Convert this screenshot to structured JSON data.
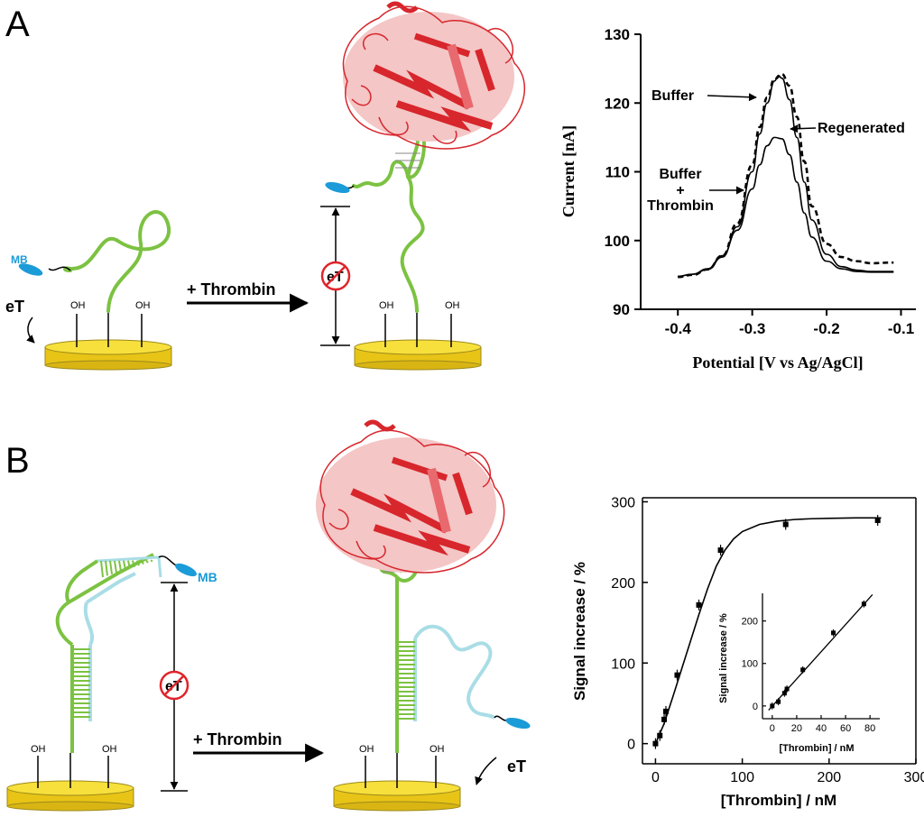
{
  "panels": {
    "a": {
      "letter": "A"
    },
    "b": {
      "letter": "B"
    }
  },
  "labels": {
    "mb": "MB",
    "et": "eT",
    "oh": "OH",
    "plus_thrombin": "+ Thrombin"
  },
  "colors": {
    "gold": "#f2d61f",
    "aptamer_green": "#7cc242",
    "complement_blue": "#a9dde6",
    "mb_blue": "#1b9bd7",
    "protein_red": "#d7262c",
    "block_red": "#e0242a"
  },
  "chart_data": [
    {
      "type": "line",
      "xlabel": "Potential [V vs Ag/AgCl]",
      "ylabel": "Current [nA]",
      "xlim": [
        -0.45,
        -0.08
      ],
      "ylim": [
        90,
        130
      ],
      "xticks": [
        "-0.4",
        "-0.3",
        "-0.2",
        "-0.1"
      ],
      "yticks": [
        "90",
        "100",
        "110",
        "120",
        "130"
      ],
      "grid": false,
      "series": [
        {
          "name": "Buffer",
          "style": "solid",
          "x": [
            -0.4,
            -0.38,
            -0.36,
            -0.34,
            -0.32,
            -0.3,
            -0.29,
            -0.28,
            -0.27,
            -0.265,
            -0.26,
            -0.25,
            -0.24,
            -0.23,
            -0.22,
            -0.2,
            -0.18,
            -0.16,
            -0.14,
            -0.11
          ],
          "y": [
            94.8,
            95.1,
            95.8,
            97.6,
            102.0,
            110.0,
            115.5,
            120.0,
            123.2,
            124.0,
            123.6,
            120.5,
            115.0,
            108.5,
            103.0,
            98.0,
            96.2,
            95.7,
            95.5,
            95.5
          ]
        },
        {
          "name": "Regenerated",
          "style": "dashed",
          "x": [
            -0.4,
            -0.38,
            -0.36,
            -0.34,
            -0.32,
            -0.3,
            -0.29,
            -0.28,
            -0.27,
            -0.26,
            -0.25,
            -0.24,
            -0.23,
            -0.22,
            -0.2,
            -0.18,
            -0.16,
            -0.14,
            -0.11
          ],
          "y": [
            94.7,
            95.0,
            95.8,
            97.8,
            102.5,
            111.0,
            116.5,
            120.8,
            123.5,
            124.2,
            122.5,
            118.0,
            111.5,
            105.0,
            99.5,
            97.6,
            97.0,
            96.7,
            96.8
          ]
        },
        {
          "name": "Buffer + Thrombin",
          "style": "solid",
          "x": [
            -0.4,
            -0.38,
            -0.36,
            -0.34,
            -0.32,
            -0.3,
            -0.29,
            -0.28,
            -0.27,
            -0.26,
            -0.25,
            -0.24,
            -0.23,
            -0.22,
            -0.2,
            -0.18,
            -0.16,
            -0.14,
            -0.11
          ],
          "y": [
            94.8,
            95.1,
            95.9,
            97.8,
            101.5,
            107.5,
            111.0,
            113.8,
            115.0,
            114.8,
            112.5,
            108.5,
            104.0,
            100.5,
            97.0,
            95.9,
            95.5,
            95.4,
            95.4
          ]
        }
      ],
      "annotations": [
        {
          "text": "Buffer"
        },
        {
          "text": "Regenerated"
        },
        {
          "text": "Buffer"
        },
        {
          "text": "+"
        },
        {
          "text": "Thrombin"
        }
      ]
    },
    {
      "type": "scatter",
      "xlabel": "[Thrombin] / nM",
      "ylabel": "Signal increase / %",
      "xlim": [
        -15,
        300
      ],
      "ylim": [
        -25,
        305
      ],
      "xticks": [
        "0",
        "100",
        "200",
        "300"
      ],
      "yticks": [
        "0",
        "100",
        "200",
        "300"
      ],
      "points": {
        "x": [
          0,
          5,
          10,
          12,
          25,
          50,
          75,
          150,
          256
        ],
        "y": [
          0,
          10,
          30,
          40,
          85,
          172,
          240,
          272,
          277
        ]
      },
      "fit": {
        "x": [
          0,
          10,
          20,
          30,
          40,
          50,
          60,
          70,
          80,
          90,
          100,
          120,
          140,
          160,
          180,
          200,
          230,
          260
        ],
        "y": [
          0,
          25,
          58,
          92,
          126,
          160,
          192,
          220,
          240,
          254,
          263,
          272,
          276,
          278,
          279,
          279.5,
          280,
          280
        ]
      },
      "inset": {
        "type": "scatter",
        "xlabel": "[Thrombin] / nM",
        "ylabel": "Signal increase / %",
        "xlim": [
          -8,
          88
        ],
        "ylim": [
          -30,
          265
        ],
        "xticks": [
          "0",
          "20",
          "40",
          "60",
          "80"
        ],
        "yticks": [
          "0",
          "100",
          "200"
        ],
        "points": {
          "x": [
            0,
            5,
            10,
            12,
            25,
            50,
            75
          ],
          "y": [
            0,
            10,
            30,
            40,
            85,
            172,
            240
          ]
        },
        "fit": {
          "x": [
            -3,
            82
          ],
          "y": [
            -10,
            262
          ]
        }
      }
    }
  ]
}
